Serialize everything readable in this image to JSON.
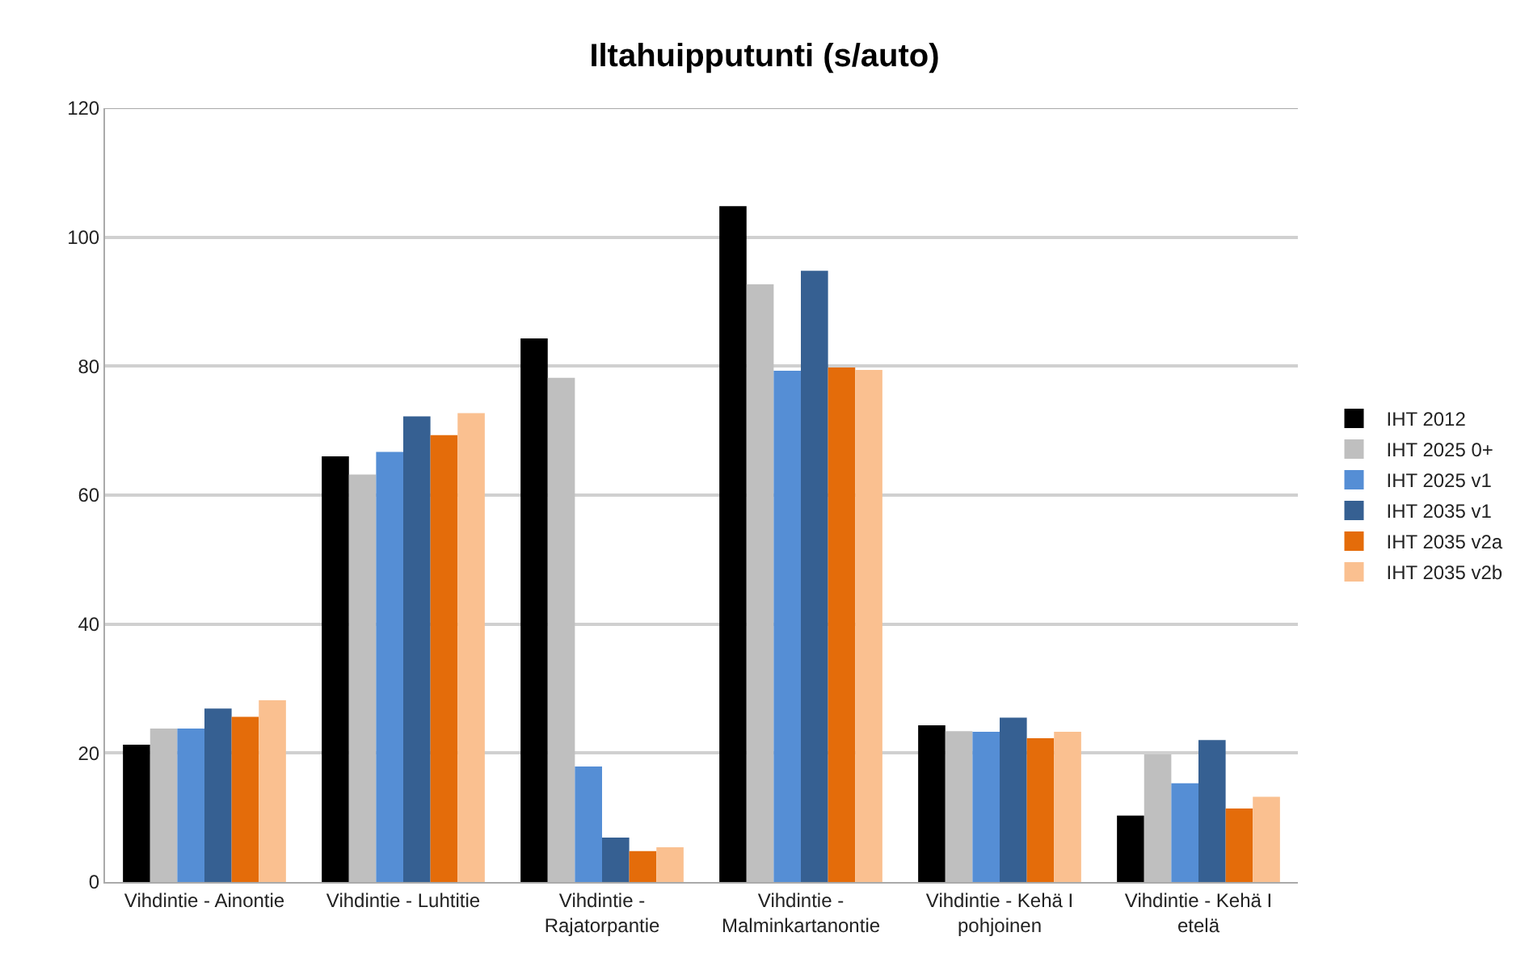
{
  "chart_data": {
    "type": "bar",
    "title": "Iltahuipputunti (s/auto)",
    "categories": [
      "Vihdintie - Ainontie",
      "Vihdintie - Luhtitie",
      "Vihdintie - Rajatorpantie",
      "Vihdintie - Malminkartanontie",
      "Vihdintie - Kehä I pohjoinen",
      "Vihdintie - Kehä I etelä"
    ],
    "series": [
      {
        "name": "IHT 2012",
        "color": "#000000",
        "values": [
          21.3,
          66.0,
          84.3,
          104.8,
          24.3,
          10.3
        ]
      },
      {
        "name": "IHT 2025 0+",
        "color": "#bfbfbf",
        "values": [
          23.8,
          63.2,
          78.2,
          92.7,
          23.4,
          19.8
        ]
      },
      {
        "name": "IHT 2025 v1",
        "color": "#558ed5",
        "values": [
          23.8,
          66.7,
          17.9,
          79.3,
          23.3,
          15.3
        ]
      },
      {
        "name": "IHT 2035 v1",
        "color": "#366092",
        "values": [
          26.9,
          72.2,
          6.9,
          94.8,
          25.5,
          22.0
        ]
      },
      {
        "name": "IHT 2035 v2a",
        "color": "#e46c0a",
        "values": [
          25.6,
          69.3,
          4.8,
          79.8,
          22.3,
          11.4
        ]
      },
      {
        "name": "IHT 2035 v2b",
        "color": "#fac090",
        "values": [
          28.2,
          72.7,
          5.4,
          79.4,
          23.3,
          13.2
        ]
      }
    ],
    "ylim": [
      0,
      120
    ],
    "yticks": [
      0,
      20,
      40,
      60,
      80,
      100,
      120
    ],
    "grid": "y",
    "legend": "right"
  }
}
